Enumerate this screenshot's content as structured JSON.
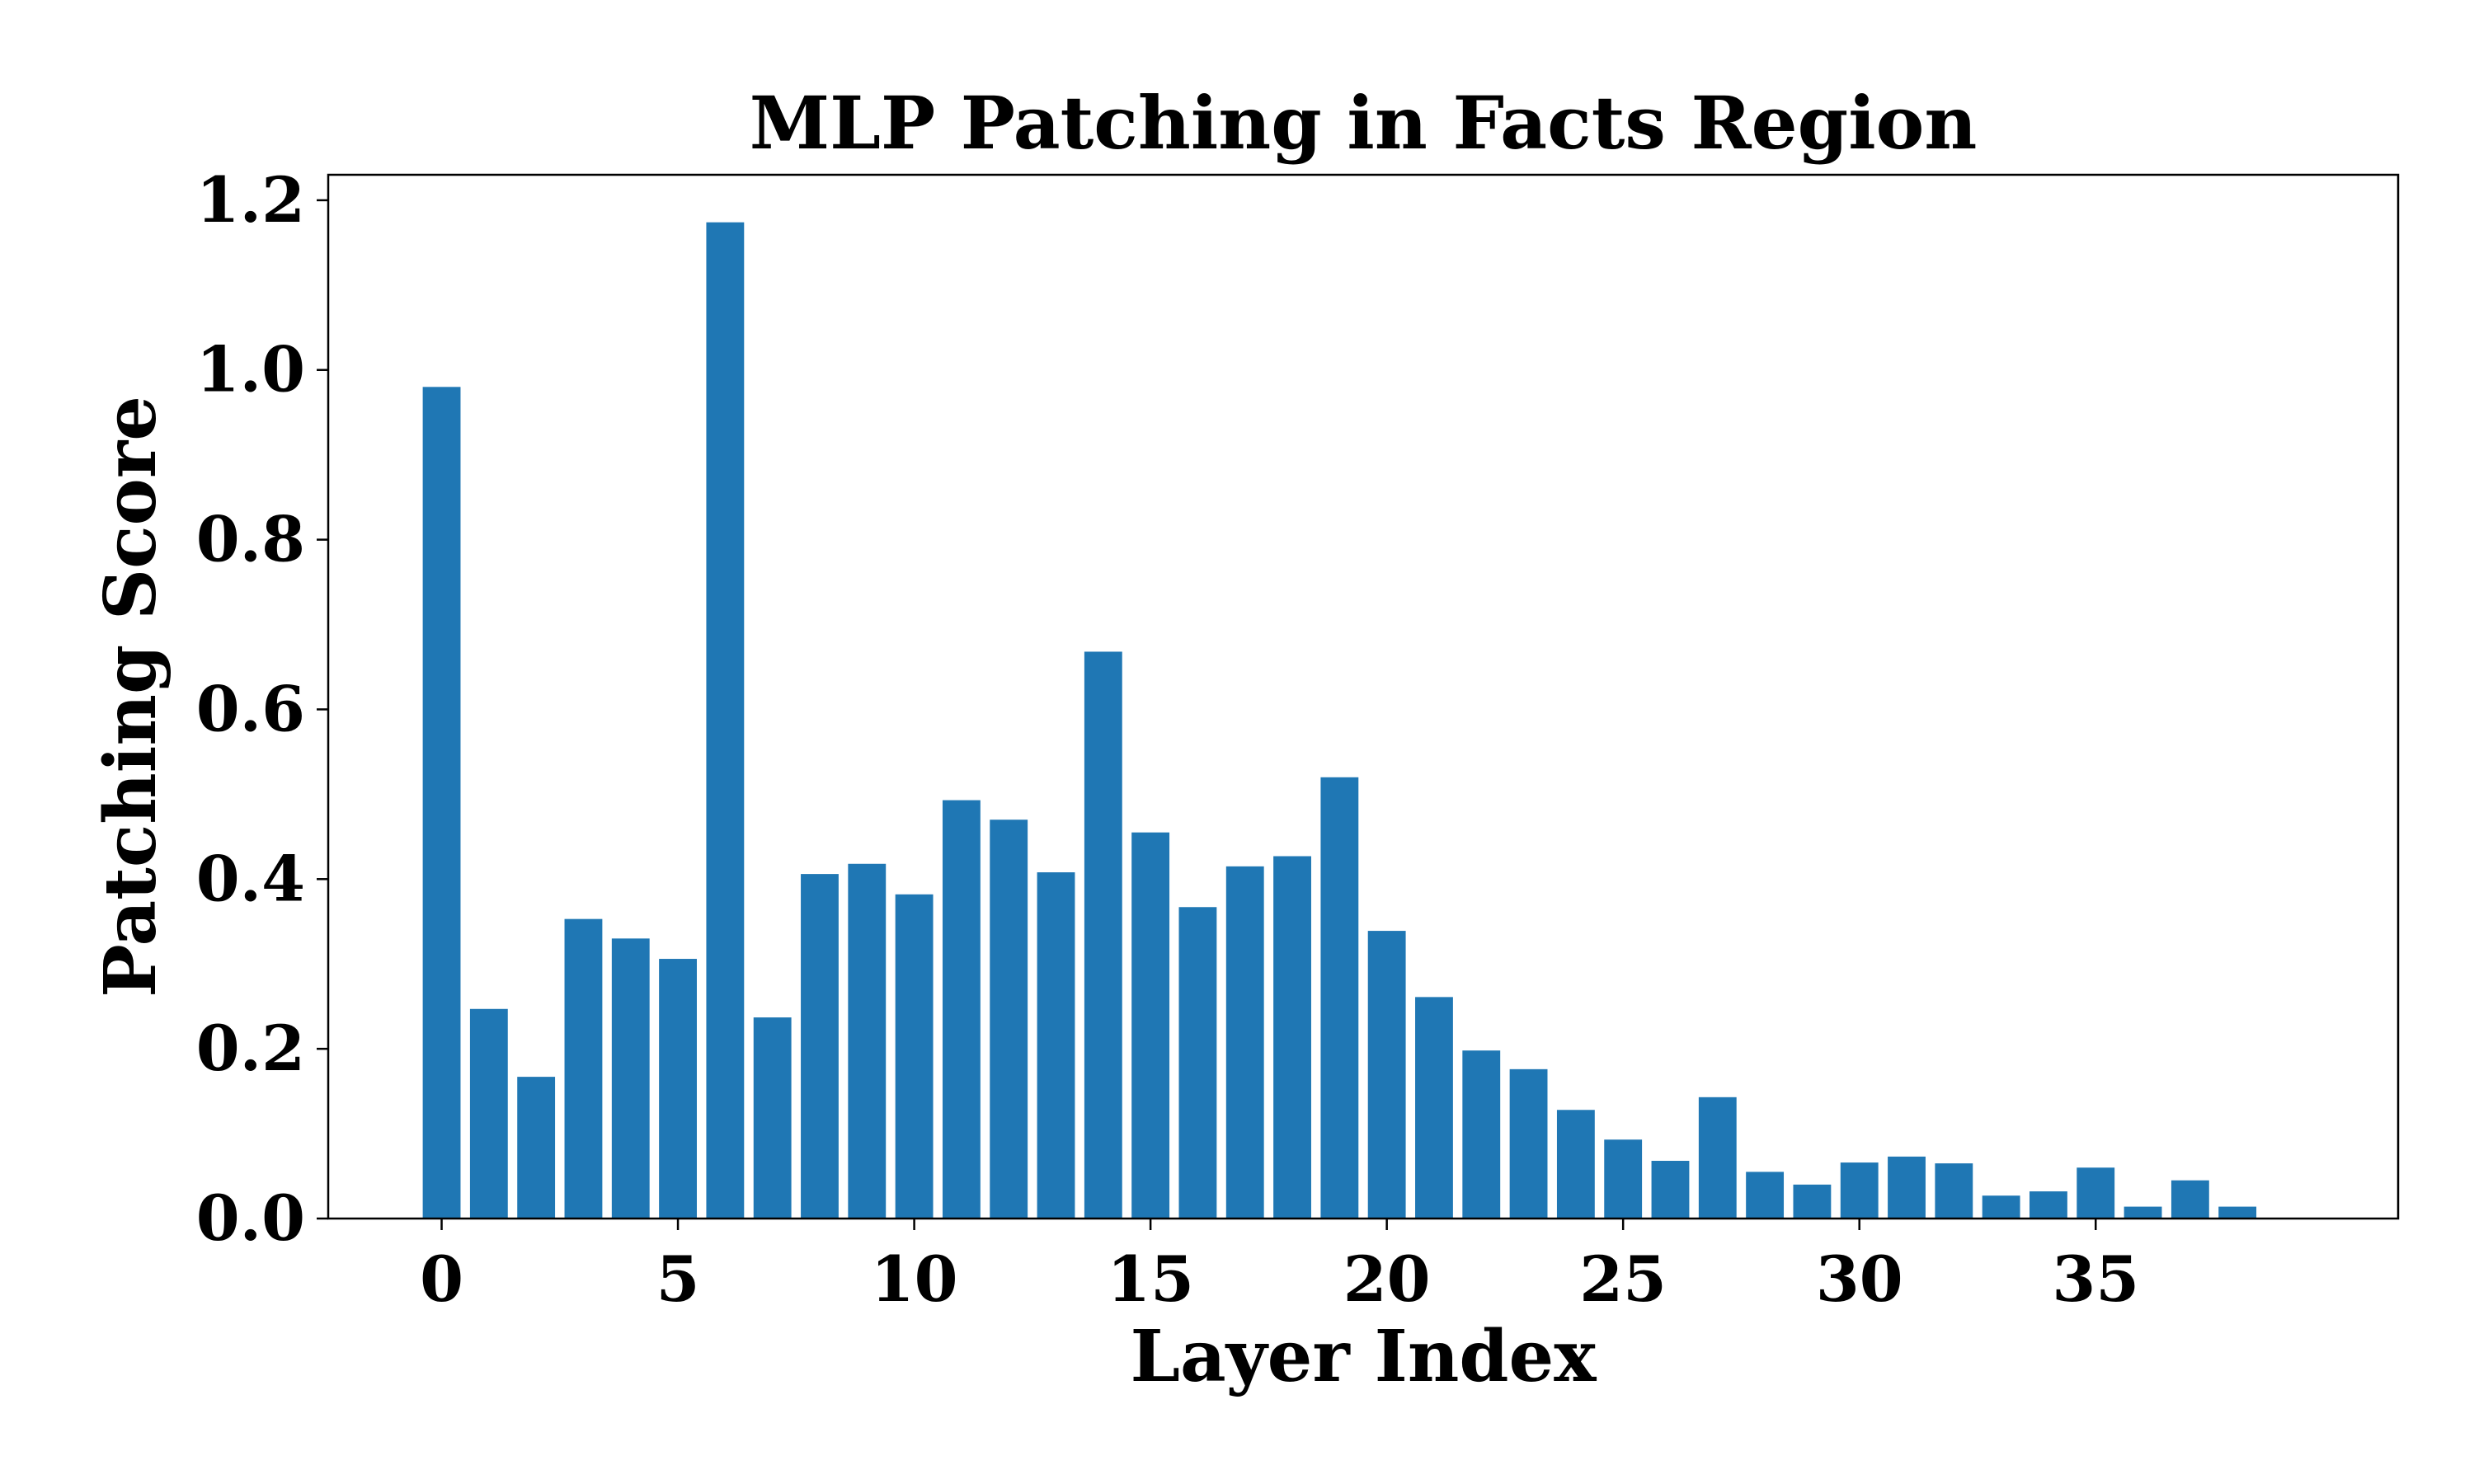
{
  "chart_data": {
    "type": "bar",
    "title": "MLP Patching in Facts Region",
    "xlabel": "Layer Index",
    "ylabel": "Patching Score",
    "categories": [
      0,
      1,
      2,
      3,
      4,
      5,
      6,
      7,
      8,
      9,
      10,
      11,
      12,
      13,
      14,
      15,
      16,
      17,
      18,
      19,
      20,
      21,
      22,
      23,
      24,
      25,
      26,
      27,
      28,
      29,
      30,
      31,
      32,
      33,
      34,
      35,
      36,
      37,
      38
    ],
    "values": [
      0.98,
      0.247,
      0.167,
      0.353,
      0.33,
      0.306,
      1.174,
      0.237,
      0.406,
      0.418,
      0.382,
      0.493,
      0.47,
      0.408,
      0.668,
      0.455,
      0.367,
      0.415,
      0.427,
      0.52,
      0.339,
      0.261,
      0.198,
      0.176,
      0.128,
      0.093,
      0.068,
      0.143,
      0.055,
      0.04,
      0.066,
      0.073,
      0.065,
      0.027,
      0.032,
      0.06,
      0.014,
      0.045,
      0.014
    ],
    "bar_color": "#1f77b4",
    "xlim": [
      -2.4,
      41.4
    ],
    "ylim": [
      0.0,
      1.23
    ],
    "xticks": [
      0,
      5,
      10,
      15,
      20,
      25,
      30,
      35
    ],
    "xtick_labels": [
      "0",
      "5",
      "10",
      "15",
      "20",
      "25",
      "30",
      "35"
    ],
    "yticks": [
      0.0,
      0.2,
      0.4,
      0.6,
      0.8,
      1.0,
      1.2
    ],
    "ytick_labels": [
      "0.0",
      "0.2",
      "0.4",
      "0.6",
      "0.8",
      "1.0",
      "1.2"
    ],
    "grid": false,
    "legend": "none"
  }
}
